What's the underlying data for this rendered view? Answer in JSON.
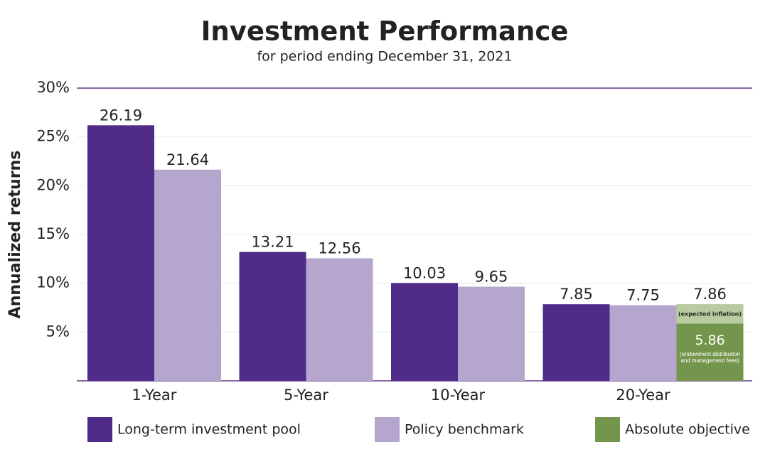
{
  "chart_data": {
    "type": "bar",
    "title": "Investment Performance",
    "subtitle": "for period ending December 31, 2021",
    "y_label": "Annualized returns",
    "categories": [
      "1-Year",
      "5-Year",
      "10-Year",
      "20-Year"
    ],
    "series": [
      {
        "name": "Long-term investment pool",
        "color": "#4f2c87",
        "values": [
          26.19,
          13.21,
          10.03,
          7.85
        ]
      },
      {
        "name": "Policy benchmark",
        "color": "#b5a6cd",
        "values": [
          21.64,
          12.56,
          9.65,
          7.75
        ]
      },
      {
        "name": "Absolute objective",
        "color": "#74964c",
        "values": [
          null,
          null,
          null,
          5.86
        ],
        "notes": [
          null,
          null,
          null,
          "(endowment distribution and management fees)"
        ]
      }
    ],
    "stacked_segment": {
      "label": "(expected inflation)",
      "color": "#b9cca0",
      "values": [
        null,
        null,
        null,
        2
      ]
    },
    "totals": [
      null,
      null,
      null,
      7.86
    ],
    "ylim": [
      0,
      30
    ],
    "yticks": [
      {
        "value": 5,
        "label": "5%"
      },
      {
        "value": 10,
        "label": "10%"
      },
      {
        "value": 15,
        "label": "15%"
      },
      {
        "value": 20,
        "label": "20%"
      },
      {
        "value": 25,
        "label": "25%"
      },
      {
        "value": 30,
        "label": "30%"
      }
    ],
    "grid": true,
    "legend": "bottom"
  }
}
